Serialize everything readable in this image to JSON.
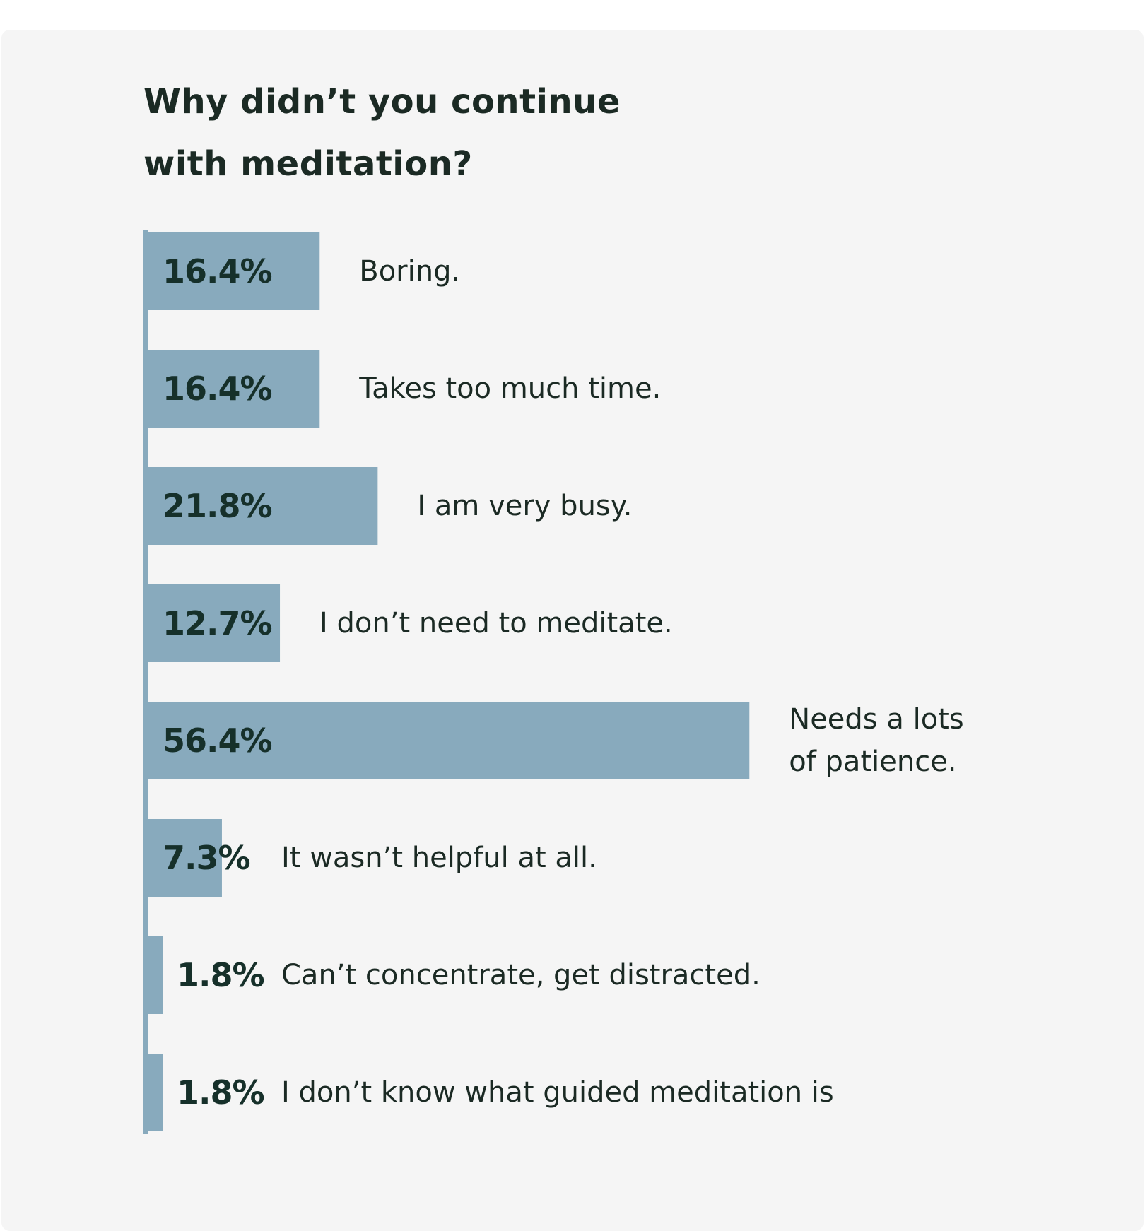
{
  "colors": {
    "bar": "#88aabd",
    "background": "#f5f5f5",
    "text": "#1b2a24"
  },
  "chart_data": {
    "type": "bar",
    "orientation": "horizontal",
    "title": "Why didn’t you continue\nwith meditation?",
    "xlabel": "",
    "ylabel": "",
    "grid": false,
    "legend": "none",
    "xlim": [
      0,
      56.4
    ],
    "categories": [
      [
        "Boring."
      ],
      [
        "Takes too much time."
      ],
      [
        "I am very busy."
      ],
      [
        "I don’t need to meditate."
      ],
      [
        "Needs a lots",
        "of patience."
      ],
      [
        "It wasn’t helpful at all."
      ],
      [
        "Can’t concentrate, get distracted."
      ],
      [
        "I don’t know what guided meditation is"
      ]
    ],
    "values": [
      16.4,
      16.4,
      21.8,
      12.7,
      56.4,
      7.3,
      1.8,
      1.8
    ],
    "value_labels": [
      "16.4%",
      "16.4%",
      "21.8%",
      "12.7%",
      "56.4%",
      "7.3%",
      "1.8%",
      "1.8%"
    ]
  }
}
